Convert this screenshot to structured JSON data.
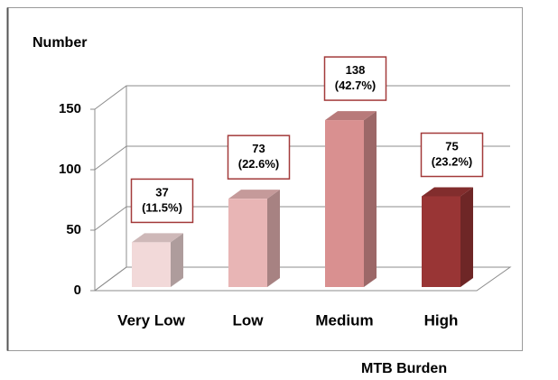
{
  "chart_data": {
    "type": "bar3d",
    "y_label": "Number",
    "x_label": "MTB Burden",
    "categories": [
      "Very Low",
      "Low",
      "Medium",
      "High"
    ],
    "values": [
      37,
      73,
      138,
      75
    ],
    "value_labels": [
      [
        "37",
        "(11.5%)"
      ],
      [
        "73",
        "(22.6%)"
      ],
      [
        "138",
        "(42.7%)"
      ],
      [
        "75",
        "(23.2%)"
      ]
    ],
    "colors": [
      "#f2d9d9",
      "#e8b5b5",
      "#d99090",
      "#993535"
    ],
    "ylim": [
      0,
      150
    ],
    "yticks": [
      0,
      50,
      100,
      150
    ],
    "grid": true
  }
}
